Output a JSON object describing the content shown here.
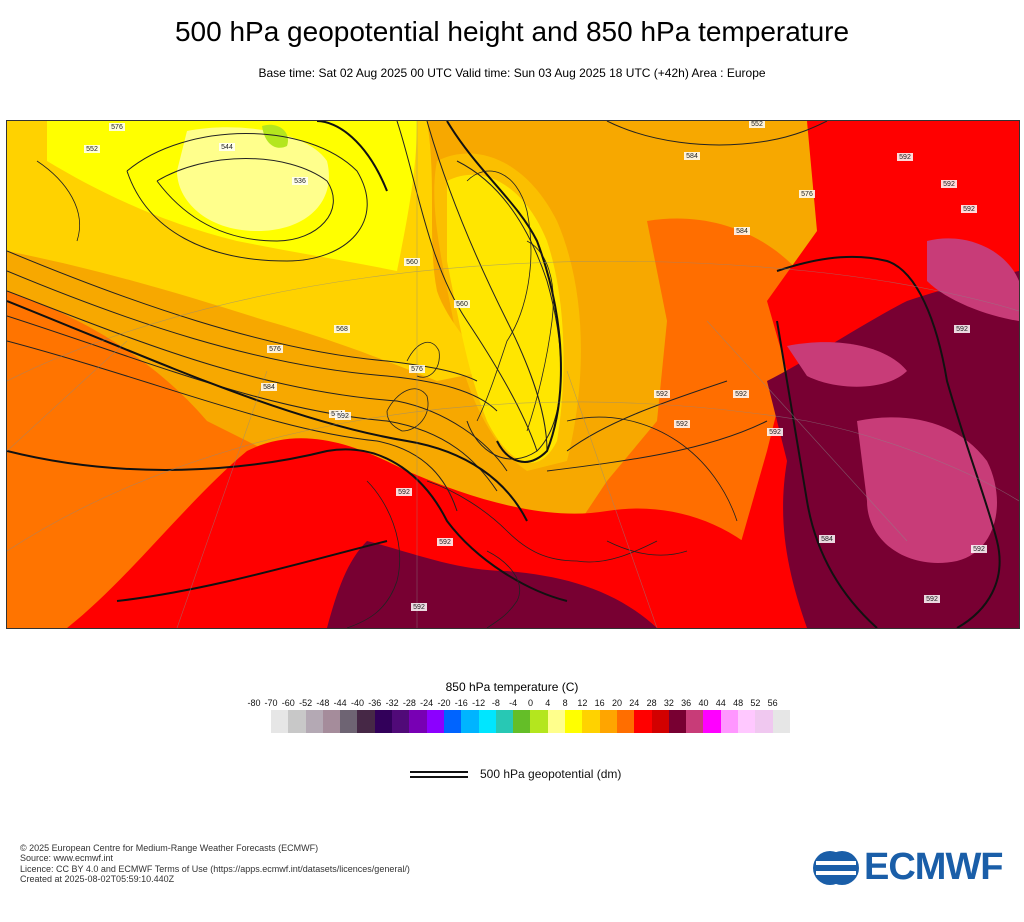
{
  "header": {
    "title": "500 hPa geopotential height and 850 hPa temperature",
    "subtitle": "Base time: Sat 02 Aug 2025 00 UTC Valid time: Sun 03 Aug 2025 18 UTC (+42h) Area : Europe"
  },
  "map": {
    "region": "Europe",
    "contour_labels": [
      "576",
      "552",
      "536",
      "544",
      "560",
      "568",
      "576",
      "584",
      "592",
      "584",
      "560",
      "576",
      "552",
      "584",
      "576",
      "584",
      "592",
      "592",
      "592",
      "592",
      "592",
      "592",
      "592",
      "592",
      "584",
      "592",
      "592",
      "592",
      "592",
      "592"
    ]
  },
  "legend": {
    "title": "850 hPa temperature (C)",
    "ticks": [
      "-80",
      "-70",
      "-60",
      "-52",
      "-48",
      "-44",
      "-40",
      "-36",
      "-32",
      "-28",
      "-24",
      "-20",
      "-16",
      "-12",
      "-8",
      "-4",
      "0",
      "4",
      "8",
      "12",
      "16",
      "20",
      "24",
      "28",
      "32",
      "36",
      "40",
      "44",
      "48",
      "52",
      "56"
    ],
    "colors": [
      "#e6e6e6",
      "#c8c8c8",
      "#b4a9b4",
      "#a58c9b",
      "#6e6473",
      "#462846",
      "#32005a",
      "#500a78",
      "#7800b4",
      "#8c00ff",
      "#0064ff",
      "#00b4ff",
      "#00e6ff",
      "#28c8b4",
      "#64be28",
      "#b4e61e",
      "#ffff8c",
      "#ffff00",
      "#ffd200",
      "#ffa500",
      "#ff6e00",
      "#ff0000",
      "#d20000",
      "#780032",
      "#c83c78",
      "#ff00ff",
      "#ff96ff",
      "#ffc8ff",
      "#f0c8f0",
      "#e6e6e6"
    ],
    "contour_label": "500 hPa geopotential (dm)"
  },
  "footer": {
    "line1": "© 2025 European Centre for Medium-Range Weather Forecasts (ECMWF)",
    "line2": "Source: www.ecmwf.int",
    "line3": "Licence: CC BY 4.0 and ECMWF Terms of Use (https://apps.ecmwf.int/datasets/licences/general/)",
    "line4": "Created at 2025-08-02T05:59:10.440Z"
  },
  "logo": {
    "text": "ECMWF",
    "color": "#1a5ea8"
  }
}
